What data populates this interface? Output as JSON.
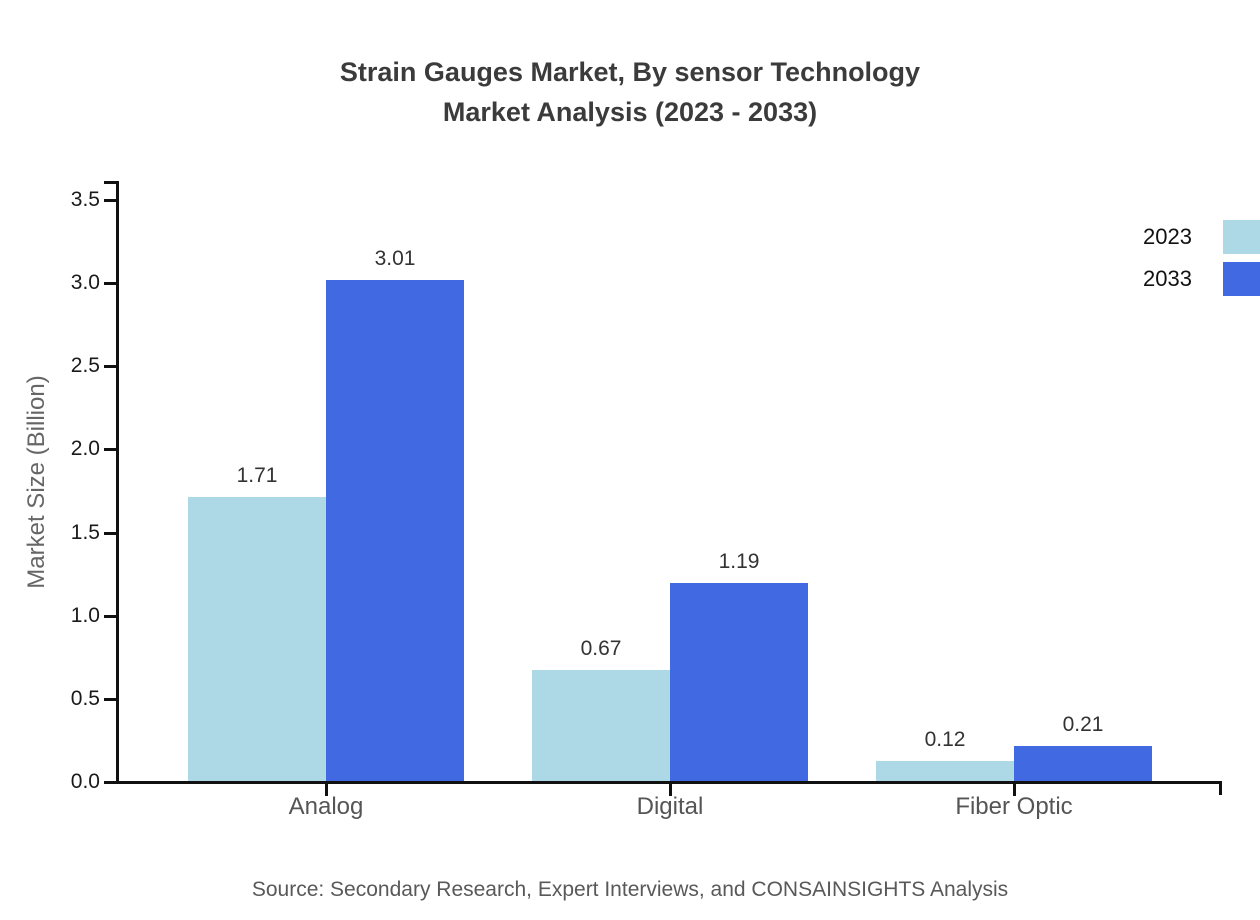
{
  "title": {
    "line1": "Strain Gauges Market, By sensor Technology",
    "line2": "Market Analysis (2023 - 2033)"
  },
  "chart_data": {
    "type": "bar",
    "title": "Strain Gauges Market, By sensor Technology Market Analysis (2023 - 2033)",
    "categories": [
      "Analog",
      "Digital",
      "Fiber Optic"
    ],
    "series": [
      {
        "name": "2023",
        "color": "#ADD8E6",
        "values": [
          1.71,
          0.67,
          0.12
        ]
      },
      {
        "name": "2033",
        "color": "#4169E1",
        "values": [
          3.01,
          1.19,
          0.21
        ]
      }
    ],
    "ylabel": "Market Size (Billion)",
    "xlabel": "",
    "ylim": [
      0,
      3.5
    ],
    "ytick_step": 0.5,
    "ytick_labels": [
      "0.0",
      "0.5",
      "1.0",
      "1.5",
      "2.0",
      "2.5",
      "3.0",
      "3.5"
    ],
    "grid": false,
    "legend_position": "upper right",
    "value_labels_shown": true
  },
  "source": "Source: Secondary Research, Expert Interviews, and CONSAINSIGHTS Analysis",
  "colors": {
    "series_2023": "#ADD8E6",
    "series_2033": "#4169E1",
    "axis": "#111111",
    "title_text": "#3b3b3b",
    "tick_label": "#1a1a1a",
    "category_label": "#555555",
    "value_label": "#333333",
    "ylabel_text": "#666666",
    "source_text": "#595959"
  }
}
